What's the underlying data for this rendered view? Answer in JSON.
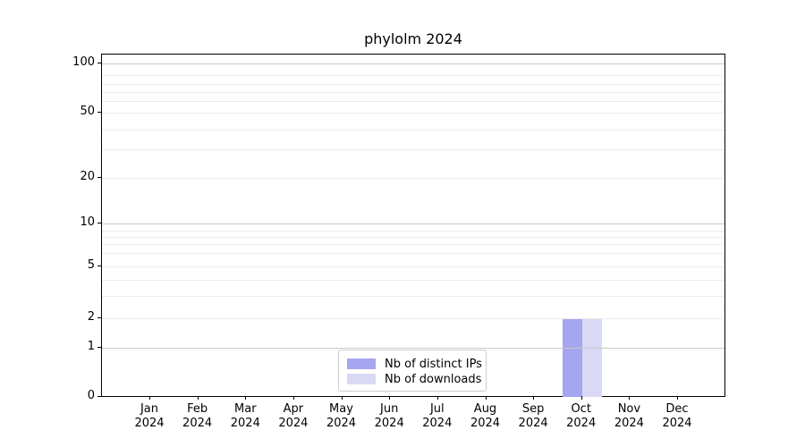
{
  "chart_data": {
    "type": "bar",
    "title": "phylolm 2024",
    "categories": [
      "Jan 2024",
      "Feb 2024",
      "Mar 2024",
      "Apr 2024",
      "May 2024",
      "Jun 2024",
      "Jul 2024",
      "Aug 2024",
      "Sep 2024",
      "Oct 2024",
      "Nov 2024",
      "Dec 2024"
    ],
    "series": [
      {
        "name": "Nb of distinct IPs",
        "color": "#a5a5f0",
        "values": [
          0,
          0,
          0,
          0,
          0,
          0,
          0,
          0,
          0,
          2,
          0,
          0
        ]
      },
      {
        "name": "Nb of downloads",
        "color": "#d9d9f5",
        "values": [
          0,
          0,
          0,
          0,
          0,
          0,
          0,
          0,
          0,
          2,
          0,
          0
        ]
      }
    ],
    "xlabel": "",
    "ylabel": "",
    "yscale": "asinh",
    "yticks": [
      0,
      1,
      2,
      5,
      10,
      20,
      50,
      100
    ],
    "ylim": [
      0,
      130
    ],
    "grid": "horizontal, minor + decade lines",
    "legend_position": "inside lower-center",
    "colors": {
      "decade_gridline": "#c9c9c9",
      "minor_gridline": "#ececec",
      "axis": "#000000",
      "background": "#ffffff"
    }
  }
}
